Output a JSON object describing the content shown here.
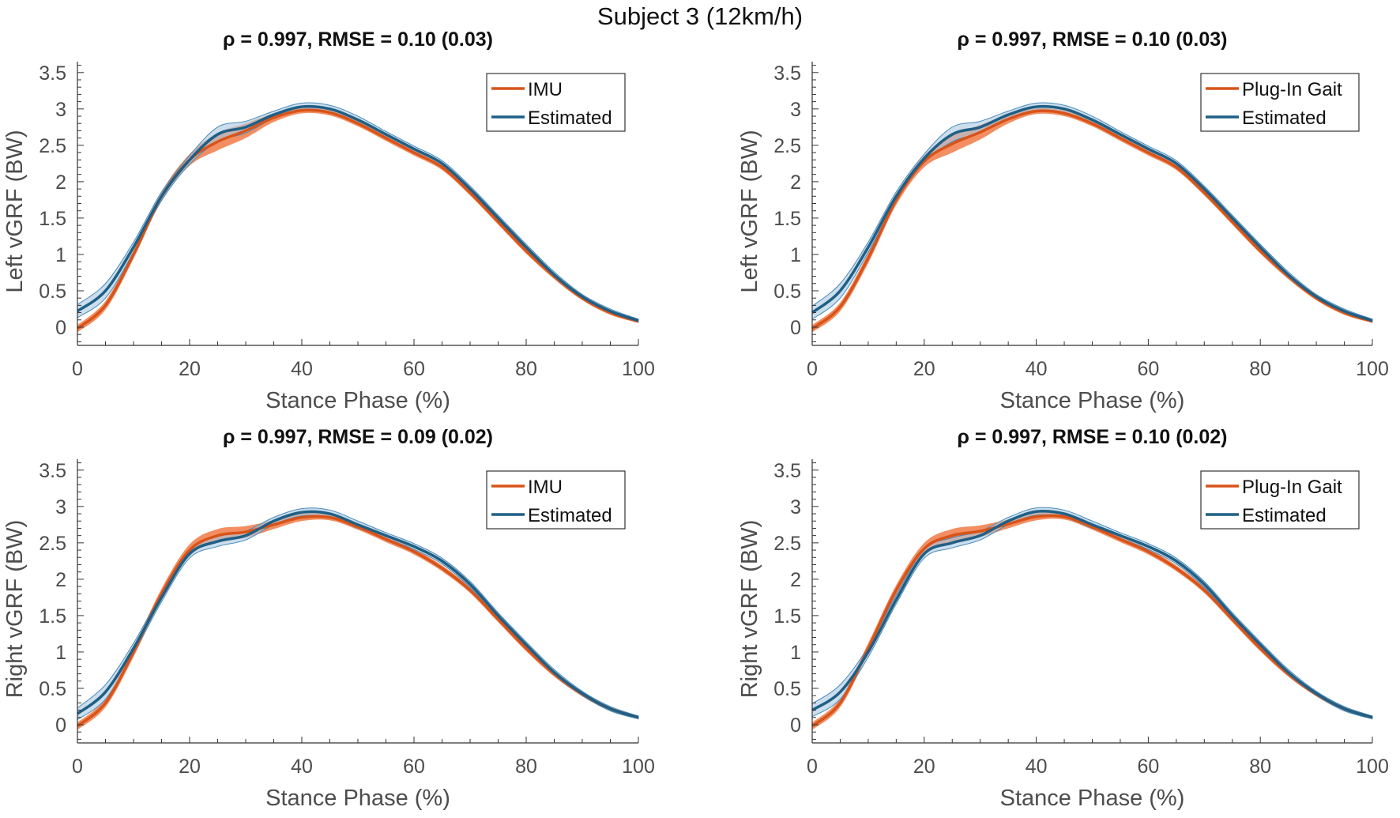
{
  "chart_data": {
    "type": "line",
    "title": "Subject 3 (12km/h)",
    "colors": {
      "reference": "#D95319",
      "reference_band": "#F07A45",
      "estimated": "#1F5F85",
      "estimated_band": "#A8C8E2"
    },
    "x": [
      0,
      5,
      10,
      15,
      20,
      25,
      30,
      35,
      40,
      45,
      50,
      55,
      60,
      65,
      70,
      75,
      80,
      85,
      90,
      95,
      100
    ],
    "panels": [
      {
        "title": "ρ = 0.997, RMSE = 0.10 (0.03)",
        "xlabel": "Stance Phase (%)",
        "ylabel": "Left vGRF (BW)",
        "xlim": [
          0,
          100
        ],
        "ylim": [
          -0.25,
          3.65
        ],
        "xticks": [
          "0",
          "20",
          "40",
          "60",
          "80",
          "100"
        ],
        "yticks": [
          "0",
          "0.5",
          "1",
          "1.5",
          "2",
          "2.5",
          "3",
          "3.5"
        ],
        "legend": "top-right",
        "series": [
          {
            "name": "IMU",
            "values": [
              -0.02,
              0.3,
              1.0,
              1.8,
              2.3,
              2.55,
              2.7,
              2.88,
              2.98,
              2.95,
              2.8,
              2.6,
              2.4,
              2.2,
              1.85,
              1.45,
              1.05,
              0.7,
              0.4,
              0.2,
              0.08
            ],
            "sd": [
              0.05,
              0.06,
              0.06,
              0.06,
              0.08,
              0.12,
              0.1,
              0.06,
              0.04,
              0.04,
              0.04,
              0.04,
              0.04,
              0.04,
              0.04,
              0.04,
              0.04,
              0.04,
              0.03,
              0.03,
              0.02
            ]
          },
          {
            "name": "Estimated",
            "values": [
              0.22,
              0.5,
              1.1,
              1.8,
              2.3,
              2.65,
              2.75,
              2.92,
              3.03,
              3.0,
              2.85,
              2.65,
              2.45,
              2.25,
              1.9,
              1.5,
              1.1,
              0.72,
              0.42,
              0.22,
              0.09
            ],
            "sd": [
              0.09,
              0.1,
              0.07,
              0.06,
              0.06,
              0.1,
              0.08,
              0.05,
              0.05,
              0.05,
              0.05,
              0.04,
              0.04,
              0.04,
              0.04,
              0.04,
              0.04,
              0.04,
              0.03,
              0.03,
              0.02
            ]
          }
        ]
      },
      {
        "title": "ρ = 0.997, RMSE = 0.10 (0.03)",
        "xlabel": "Stance Phase (%)",
        "ylabel": "Left vGRF (BW)",
        "xlim": [
          0,
          100
        ],
        "ylim": [
          -0.25,
          3.65
        ],
        "xticks": [
          "0",
          "20",
          "40",
          "60",
          "80",
          "100"
        ],
        "yticks": [
          "0",
          "0.5",
          "1",
          "1.5",
          "2",
          "2.5",
          "3",
          "3.5"
        ],
        "legend": "top-right",
        "series": [
          {
            "name": "Plug-In Gait",
            "values": [
              -0.02,
              0.28,
              0.95,
              1.75,
              2.28,
              2.52,
              2.68,
              2.86,
              2.97,
              2.94,
              2.8,
              2.6,
              2.4,
              2.2,
              1.85,
              1.45,
              1.05,
              0.7,
              0.4,
              0.2,
              0.08
            ],
            "sd": [
              0.05,
              0.06,
              0.07,
              0.07,
              0.08,
              0.12,
              0.1,
              0.06,
              0.04,
              0.04,
              0.04,
              0.04,
              0.04,
              0.04,
              0.04,
              0.04,
              0.04,
              0.04,
              0.03,
              0.03,
              0.02
            ]
          },
          {
            "name": "Estimated",
            "values": [
              0.2,
              0.5,
              1.1,
              1.8,
              2.32,
              2.65,
              2.75,
              2.92,
              3.03,
              3.0,
              2.85,
              2.65,
              2.45,
              2.25,
              1.9,
              1.5,
              1.1,
              0.72,
              0.42,
              0.22,
              0.09
            ],
            "sd": [
              0.09,
              0.1,
              0.07,
              0.06,
              0.06,
              0.1,
              0.08,
              0.05,
              0.05,
              0.05,
              0.05,
              0.04,
              0.04,
              0.04,
              0.04,
              0.04,
              0.04,
              0.04,
              0.03,
              0.03,
              0.02
            ]
          }
        ]
      },
      {
        "title": "ρ = 0.997, RMSE = 0.09 (0.02)",
        "xlabel": "Stance Phase (%)",
        "ylabel": "Right vGRF (BW)",
        "xlim": [
          0,
          100
        ],
        "ylim": [
          -0.25,
          3.65
        ],
        "xticks": [
          "0",
          "20",
          "40",
          "60",
          "80",
          "100"
        ],
        "yticks": [
          "0",
          "0.5",
          "1",
          "1.5",
          "2",
          "2.5",
          "3",
          "3.5"
        ],
        "legend": "top-right",
        "series": [
          {
            "name": "IMU",
            "values": [
              -0.02,
              0.3,
              1.0,
              1.8,
              2.4,
              2.6,
              2.65,
              2.75,
              2.85,
              2.85,
              2.72,
              2.55,
              2.38,
              2.15,
              1.85,
              1.45,
              1.05,
              0.7,
              0.42,
              0.22,
              0.1
            ],
            "sd": [
              0.05,
              0.06,
              0.07,
              0.07,
              0.08,
              0.09,
              0.08,
              0.06,
              0.05,
              0.04,
              0.04,
              0.04,
              0.04,
              0.04,
              0.04,
              0.04,
              0.04,
              0.04,
              0.03,
              0.03,
              0.02
            ]
          },
          {
            "name": "Estimated",
            "values": [
              0.15,
              0.45,
              1.05,
              1.75,
              2.35,
              2.52,
              2.6,
              2.8,
              2.92,
              2.9,
              2.75,
              2.6,
              2.45,
              2.25,
              1.93,
              1.5,
              1.1,
              0.72,
              0.43,
              0.22,
              0.1
            ],
            "sd": [
              0.08,
              0.1,
              0.07,
              0.06,
              0.06,
              0.07,
              0.06,
              0.05,
              0.05,
              0.05,
              0.05,
              0.04,
              0.04,
              0.04,
              0.04,
              0.04,
              0.04,
              0.04,
              0.03,
              0.03,
              0.02
            ]
          }
        ]
      },
      {
        "title": "ρ = 0.997, RMSE = 0.10 (0.02)",
        "xlabel": "Stance Phase (%)",
        "ylabel": "Right vGRF (BW)",
        "xlim": [
          0,
          100
        ],
        "ylim": [
          -0.25,
          3.65
        ],
        "xticks": [
          "0",
          "20",
          "40",
          "60",
          "80",
          "100"
        ],
        "yticks": [
          "0",
          "0.5",
          "1",
          "1.5",
          "2",
          "2.5",
          "3",
          "3.5"
        ],
        "legend": "top-right",
        "series": [
          {
            "name": "Plug-In Gait",
            "values": [
              -0.02,
              0.3,
              1.05,
              1.85,
              2.42,
              2.6,
              2.66,
              2.76,
              2.86,
              2.86,
              2.72,
              2.55,
              2.38,
              2.15,
              1.85,
              1.45,
              1.05,
              0.7,
              0.42,
              0.22,
              0.1
            ],
            "sd": [
              0.05,
              0.06,
              0.07,
              0.07,
              0.08,
              0.09,
              0.08,
              0.06,
              0.05,
              0.04,
              0.04,
              0.04,
              0.04,
              0.04,
              0.04,
              0.04,
              0.04,
              0.04,
              0.03,
              0.03,
              0.02
            ]
          },
          {
            "name": "Estimated",
            "values": [
              0.2,
              0.45,
              1.0,
              1.72,
              2.35,
              2.5,
              2.6,
              2.8,
              2.93,
              2.9,
              2.75,
              2.6,
              2.45,
              2.25,
              1.93,
              1.5,
              1.1,
              0.72,
              0.43,
              0.22,
              0.1
            ],
            "sd": [
              0.09,
              0.1,
              0.07,
              0.06,
              0.06,
              0.07,
              0.06,
              0.05,
              0.05,
              0.05,
              0.05,
              0.04,
              0.04,
              0.04,
              0.04,
              0.04,
              0.04,
              0.04,
              0.03,
              0.03,
              0.02
            ]
          }
        ]
      }
    ]
  }
}
